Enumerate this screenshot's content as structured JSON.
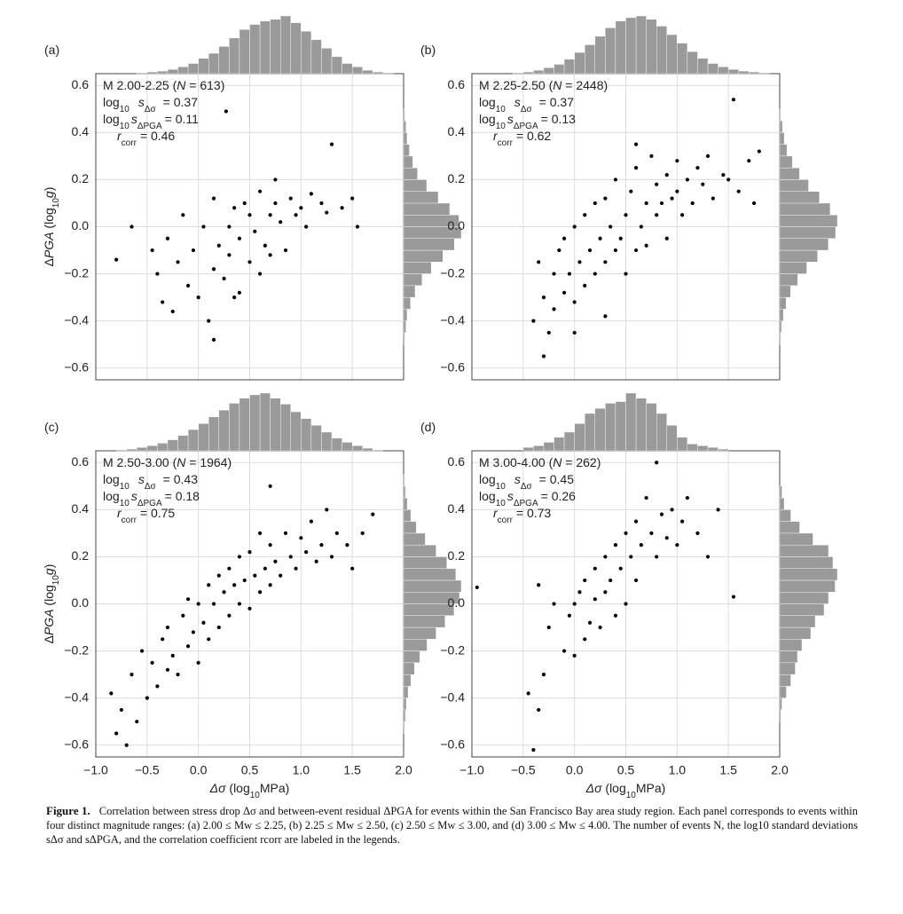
{
  "symbols": {
    "n": "N",
    "log": "log",
    "ten": "10",
    "s": "s",
    "dsig": "Δσ",
    "dpga": "ΔPGA",
    "r": "r",
    "corr": "corr"
  },
  "chart_data": [
    {
      "type": "scatter",
      "label": "(a)",
      "color": "#000000",
      "hist_color": "#9a9a9a",
      "legend": {
        "prefix": "M 2.00-2.25 (",
        "n_text": " = 613)",
        "s_dsig": "= 0.37",
        "s_dpga": "= 0.11",
        "r": "= 0.46"
      },
      "ylabel": [
        "Δ",
        "PGA",
        " (log",
        "10",
        "g",
        ")"
      ],
      "xlim": [
        -1,
        2
      ],
      "ylim": [
        -0.65,
        0.65
      ],
      "xtick_labels": false,
      "xticks": [
        -1,
        -0.5,
        0,
        0.5,
        1,
        1.5,
        2
      ],
      "yticks": [
        0.6,
        0.4,
        0.2,
        {
          "value": 0,
          "label": "0.0"
        },
        {
          "value": -0.2,
          "label": "−0.2"
        },
        {
          "value": -0.4,
          "label": "−0.4"
        },
        {
          "value": -0.6,
          "label": "−0.6"
        }
      ],
      "x": [
        -0.8,
        -0.65,
        -0.45,
        -0.4,
        -0.3,
        -0.25,
        -0.2,
        -0.15,
        -0.1,
        -0.05,
        0.0,
        0.05,
        0.1,
        0.15,
        0.15,
        0.2,
        0.25,
        0.3,
        0.3,
        0.35,
        0.4,
        0.4,
        0.45,
        0.5,
        0.5,
        0.55,
        0.6,
        0.6,
        0.65,
        0.7,
        0.7,
        0.75,
        0.8,
        0.85,
        0.9,
        0.95,
        1.0,
        1.05,
        1.1,
        1.2,
        1.25,
        1.3,
        1.4,
        1.5,
        1.55,
        0.27,
        0.15,
        0.35,
        0.75,
        -0.35
      ],
      "y": [
        -0.14,
        0.0,
        -0.1,
        -0.2,
        -0.05,
        -0.36,
        -0.15,
        0.05,
        -0.25,
        -0.1,
        -0.3,
        0.0,
        -0.4,
        -0.18,
        0.12,
        -0.08,
        -0.22,
        0.0,
        -0.12,
        0.08,
        -0.05,
        -0.28,
        0.1,
        -0.15,
        0.05,
        -0.02,
        0.15,
        -0.2,
        -0.08,
        0.05,
        -0.12,
        0.1,
        0.02,
        -0.1,
        0.12,
        0.05,
        0.08,
        0.0,
        0.14,
        0.1,
        0.06,
        0.35,
        0.08,
        0.12,
        0.0,
        0.49,
        -0.48,
        -0.3,
        0.2,
        -0.32
      ],
      "top_hist": {
        "bins": [
          -1.0,
          -0.9,
          -0.8,
          -0.7,
          -0.6,
          -0.5,
          -0.4,
          -0.3,
          -0.2,
          -0.1,
          0.0,
          0.1,
          0.2,
          0.3,
          0.4,
          0.5,
          0.6,
          0.7,
          0.8,
          0.9,
          1.0,
          1.1,
          1.2,
          1.3,
          1.4,
          1.5,
          1.6,
          1.7,
          1.8,
          1.9,
          2.0
        ],
        "counts": [
          0,
          0,
          0,
          0,
          1,
          2,
          3,
          5,
          8,
          12,
          18,
          24,
          32,
          42,
          52,
          58,
          62,
          64,
          68,
          60,
          50,
          40,
          30,
          20,
          12,
          8,
          4,
          2,
          1,
          0
        ]
      },
      "right_hist": {
        "bins": [
          -0.65,
          -0.6,
          -0.55,
          -0.5,
          -0.45,
          -0.4,
          -0.35,
          -0.3,
          -0.25,
          -0.2,
          -0.15,
          -0.1,
          -0.05,
          0.0,
          0.05,
          0.1,
          0.15,
          0.2,
          0.25,
          0.3,
          0.35,
          0.4,
          0.45,
          0.5,
          0.55,
          0.6,
          0.65
        ],
        "counts": [
          0,
          0,
          0,
          1,
          2,
          3,
          6,
          10,
          16,
          24,
          34,
          44,
          50,
          48,
          40,
          30,
          20,
          12,
          8,
          5,
          3,
          2,
          1,
          0,
          0,
          0
        ]
      }
    },
    {
      "type": "scatter",
      "label": "(b)",
      "color": "#000000",
      "hist_color": "#9a9a9a",
      "legend": {
        "prefix": "M 2.25-2.50 (",
        "n_text": " = 2448)",
        "s_dsig": "= 0.37",
        "s_dpga": "= 0.13",
        "r": "= 0.62"
      },
      "xlim": [
        -1,
        2
      ],
      "ylim": [
        -0.65,
        0.65
      ],
      "xtick_labels": false,
      "xticks": [
        -1,
        -0.5,
        0,
        0.5,
        1,
        1.5,
        2
      ],
      "yticks": [
        0.6,
        0.4,
        0.2,
        {
          "value": 0,
          "label": "0.0"
        },
        {
          "value": -0.2,
          "label": "−0.2"
        },
        {
          "value": -0.4,
          "label": "−0.4"
        },
        {
          "value": -0.6,
          "label": "−0.6"
        }
      ],
      "x": [
        -0.4,
        -0.35,
        -0.3,
        -0.3,
        -0.25,
        -0.2,
        -0.2,
        -0.15,
        -0.1,
        -0.1,
        -0.05,
        0.0,
        0.0,
        0.05,
        0.1,
        0.1,
        0.15,
        0.2,
        0.2,
        0.25,
        0.3,
        0.3,
        0.35,
        0.4,
        0.4,
        0.45,
        0.5,
        0.5,
        0.55,
        0.6,
        0.6,
        0.65,
        0.7,
        0.7,
        0.75,
        0.8,
        0.8,
        0.85,
        0.9,
        0.9,
        0.95,
        1.0,
        1.0,
        1.05,
        1.1,
        1.15,
        1.2,
        1.25,
        1.3,
        1.35,
        1.45,
        1.5,
        1.6,
        1.7,
        1.75,
        1.8,
        1.55,
        0.0,
        0.3,
        0.6
      ],
      "y": [
        -0.4,
        -0.15,
        -0.55,
        -0.3,
        -0.45,
        -0.2,
        -0.35,
        -0.1,
        -0.28,
        -0.05,
        -0.2,
        -0.32,
        0.0,
        -0.15,
        -0.25,
        0.05,
        -0.1,
        -0.2,
        0.1,
        -0.05,
        -0.15,
        0.12,
        0.0,
        -0.1,
        0.2,
        -0.05,
        0.05,
        -0.2,
        0.15,
        -0.1,
        0.25,
        0.0,
        0.1,
        -0.08,
        0.3,
        0.05,
        0.18,
        0.1,
        -0.05,
        0.22,
        0.12,
        0.15,
        0.28,
        0.05,
        0.2,
        0.1,
        0.25,
        0.18,
        0.3,
        0.12,
        0.22,
        0.2,
        0.15,
        0.28,
        0.1,
        0.32,
        0.54,
        -0.45,
        -0.38,
        0.35
      ],
      "top_hist": {
        "bins": [
          -1.0,
          -0.9,
          -0.8,
          -0.7,
          -0.6,
          -0.5,
          -0.4,
          -0.3,
          -0.2,
          -0.1,
          0.0,
          0.1,
          0.2,
          0.3,
          0.4,
          0.5,
          0.6,
          0.7,
          0.8,
          0.9,
          1.0,
          1.1,
          1.2,
          1.3,
          1.4,
          1.5,
          1.6,
          1.7,
          1.8,
          1.9,
          2.0
        ],
        "counts": [
          0,
          0,
          0,
          0,
          1,
          2,
          4,
          7,
          11,
          17,
          25,
          34,
          44,
          54,
          62,
          66,
          68,
          64,
          56,
          46,
          36,
          26,
          18,
          12,
          8,
          5,
          3,
          2,
          1,
          0
        ]
      },
      "right_hist": {
        "bins": [
          -0.65,
          -0.6,
          -0.55,
          -0.5,
          -0.45,
          -0.4,
          -0.35,
          -0.3,
          -0.25,
          -0.2,
          -0.15,
          -0.1,
          -0.05,
          0.0,
          0.05,
          0.1,
          0.15,
          0.2,
          0.25,
          0.3,
          0.35,
          0.4,
          0.45,
          0.5,
          0.55,
          0.6,
          0.65
        ],
        "counts": [
          0,
          0,
          0,
          1,
          2,
          4,
          7,
          12,
          20,
          30,
          42,
          54,
          62,
          64,
          56,
          44,
          32,
          22,
          14,
          8,
          5,
          3,
          1,
          0,
          0,
          0
        ]
      }
    },
    {
      "type": "scatter",
      "label": "(c)",
      "color": "#000000",
      "hist_color": "#9a9a9a",
      "legend": {
        "prefix": "M 2.50-3.00 (",
        "n_text": " = 1964)",
        "s_dsig": "= 0.43",
        "s_dpga": "= 0.18",
        "r": "= 0.75"
      },
      "ylabel": [
        "Δ",
        "PGA",
        " (log",
        "10",
        "g",
        ")"
      ],
      "xlabel": [
        "Δσ",
        " (log",
        "10",
        "MPa)"
      ],
      "xlim": [
        -1,
        2
      ],
      "ylim": [
        -0.65,
        0.65
      ],
      "xtick_labels": true,
      "xticks": [
        {
          "value": -1,
          "label": "−1.0"
        },
        {
          "value": -0.5,
          "label": "−0.5"
        },
        {
          "value": 0,
          "label": "0.0"
        },
        0.5,
        {
          "value": 1,
          "label": "1.0"
        },
        1.5,
        {
          "value": 2,
          "label": "2.0"
        }
      ],
      "yticks": [
        0.6,
        0.4,
        0.2,
        {
          "value": 0,
          "label": "0.0"
        },
        {
          "value": -0.2,
          "label": "−0.2"
        },
        {
          "value": -0.4,
          "label": "−0.4"
        },
        {
          "value": -0.6,
          "label": "−0.6"
        }
      ],
      "x": [
        -0.85,
        -0.8,
        -0.75,
        -0.7,
        -0.65,
        -0.6,
        -0.55,
        -0.5,
        -0.45,
        -0.4,
        -0.35,
        -0.3,
        -0.3,
        -0.25,
        -0.2,
        -0.15,
        -0.1,
        -0.1,
        -0.05,
        0.0,
        0.0,
        0.05,
        0.1,
        0.1,
        0.15,
        0.2,
        0.2,
        0.25,
        0.3,
        0.3,
        0.35,
        0.4,
        0.4,
        0.45,
        0.5,
        0.5,
        0.55,
        0.6,
        0.6,
        0.65,
        0.7,
        0.7,
        0.75,
        0.8,
        0.85,
        0.9,
        0.95,
        1.0,
        1.05,
        1.1,
        1.15,
        1.2,
        1.25,
        1.3,
        1.35,
        1.45,
        1.5,
        1.6,
        1.7,
        0.7
      ],
      "y": [
        -0.38,
        -0.55,
        -0.45,
        -0.6,
        -0.3,
        -0.5,
        -0.2,
        -0.4,
        -0.25,
        -0.35,
        -0.15,
        -0.28,
        -0.1,
        -0.22,
        -0.3,
        -0.05,
        -0.18,
        0.02,
        -0.12,
        -0.25,
        0.0,
        -0.08,
        -0.15,
        0.08,
        0.0,
        -0.1,
        0.12,
        0.05,
        -0.05,
        0.15,
        0.08,
        0.0,
        0.2,
        0.1,
        -0.02,
        0.22,
        0.12,
        0.05,
        0.3,
        0.15,
        0.08,
        0.25,
        0.18,
        0.12,
        0.3,
        0.2,
        0.15,
        0.28,
        0.22,
        0.35,
        0.18,
        0.25,
        0.4,
        0.2,
        0.3,
        0.25,
        0.15,
        0.3,
        0.38,
        0.5
      ],
      "top_hist": {
        "bins": [
          -1.0,
          -0.9,
          -0.8,
          -0.7,
          -0.6,
          -0.5,
          -0.4,
          -0.3,
          -0.2,
          -0.1,
          0.0,
          0.1,
          0.2,
          0.3,
          0.4,
          0.5,
          0.6,
          0.7,
          0.8,
          0.9,
          1.0,
          1.1,
          1.2,
          1.3,
          1.4,
          1.5,
          1.6,
          1.7,
          1.8,
          1.9,
          2.0
        ],
        "counts": [
          0,
          0,
          1,
          2,
          4,
          6,
          9,
          13,
          18,
          25,
          32,
          40,
          48,
          56,
          62,
          66,
          68,
          62,
          55,
          46,
          38,
          30,
          22,
          15,
          10,
          6,
          3,
          1,
          0,
          0
        ]
      },
      "right_hist": {
        "bins": [
          -0.65,
          -0.6,
          -0.55,
          -0.5,
          -0.45,
          -0.4,
          -0.35,
          -0.3,
          -0.25,
          -0.2,
          -0.15,
          -0.1,
          -0.05,
          0.0,
          0.05,
          0.1,
          0.15,
          0.2,
          0.25,
          0.3,
          0.35,
          0.4,
          0.45,
          0.5,
          0.55,
          0.6,
          0.65
        ],
        "counts": [
          0,
          0,
          1,
          2,
          3,
          5,
          8,
          12,
          18,
          26,
          36,
          46,
          56,
          62,
          64,
          58,
          48,
          36,
          24,
          14,
          8,
          4,
          2,
          1,
          0,
          0
        ]
      }
    },
    {
      "type": "scatter",
      "label": "(d)",
      "color": "#000000",
      "hist_color": "#9a9a9a",
      "legend": {
        "prefix": "M 3.00-4.00 (",
        "n_text": " = 262)",
        "s_dsig": "= 0.45",
        "s_dpga": "= 0.26",
        "r": "= 0.73"
      },
      "xlabel": [
        "Δσ",
        " (log",
        "10",
        "MPa)"
      ],
      "xlim": [
        -1,
        2
      ],
      "ylim": [
        -0.65,
        0.65
      ],
      "xtick_labels": true,
      "xticks": [
        {
          "value": -1,
          "label": "−1.0"
        },
        {
          "value": -0.5,
          "label": "−0.5"
        },
        {
          "value": 0,
          "label": "0.0"
        },
        0.5,
        {
          "value": 1,
          "label": "1.0"
        },
        1.5,
        {
          "value": 2,
          "label": "2.0"
        }
      ],
      "yticks": [
        0.6,
        0.4,
        0.2,
        {
          "value": 0,
          "label": "0.0"
        },
        {
          "value": -0.2,
          "label": "−0.2"
        },
        {
          "value": -0.4,
          "label": "−0.4"
        },
        {
          "value": -0.6,
          "label": "−0.6"
        }
      ],
      "x": [
        -0.95,
        -0.45,
        -0.4,
        -0.35,
        -0.35,
        -0.3,
        -0.25,
        -0.2,
        -0.1,
        -0.05,
        0.0,
        0.0,
        0.05,
        0.1,
        0.1,
        0.15,
        0.2,
        0.2,
        0.25,
        0.3,
        0.3,
        0.35,
        0.4,
        0.4,
        0.45,
        0.5,
        0.5,
        0.55,
        0.6,
        0.6,
        0.65,
        0.7,
        0.75,
        0.8,
        0.8,
        0.85,
        0.9,
        0.95,
        1.0,
        1.05,
        1.1,
        1.2,
        1.3,
        1.4,
        1.55
      ],
      "y": [
        0.07,
        -0.38,
        -0.62,
        -0.45,
        0.08,
        -0.3,
        -0.1,
        0.0,
        -0.2,
        -0.05,
        -0.22,
        0.0,
        0.05,
        -0.15,
        0.1,
        -0.08,
        0.15,
        0.02,
        -0.1,
        0.2,
        0.05,
        0.1,
        -0.05,
        0.25,
        0.15,
        0.3,
        0.0,
        0.2,
        0.35,
        0.1,
        0.25,
        0.45,
        0.3,
        0.2,
        0.6,
        0.38,
        0.28,
        0.4,
        0.25,
        0.35,
        0.45,
        0.3,
        0.2,
        0.4,
        0.03
      ],
      "top_hist": {
        "bins": [
          -1.0,
          -0.9,
          -0.8,
          -0.7,
          -0.6,
          -0.5,
          -0.4,
          -0.3,
          -0.2,
          -0.1,
          0.0,
          0.1,
          0.2,
          0.3,
          0.4,
          0.5,
          0.6,
          0.7,
          0.8,
          0.9,
          1.0,
          1.1,
          1.2,
          1.3,
          1.4,
          1.5,
          1.6,
          1.7,
          1.8,
          1.9,
          2.0
        ],
        "counts": [
          0,
          0,
          0,
          0,
          0,
          4,
          6,
          10,
          16,
          22,
          32,
          44,
          50,
          56,
          58,
          68,
          62,
          56,
          44,
          30,
          16,
          8,
          6,
          4,
          2,
          0,
          0,
          0,
          0,
          0
        ]
      },
      "right_hist": {
        "bins": [
          -0.65,
          -0.6,
          -0.55,
          -0.5,
          -0.45,
          -0.4,
          -0.35,
          -0.3,
          -0.25,
          -0.2,
          -0.15,
          -0.1,
          -0.05,
          0.0,
          0.05,
          0.1,
          0.15,
          0.2,
          0.25,
          0.3,
          0.35,
          0.4,
          0.45,
          0.5,
          0.55,
          0.6,
          0.65
        ],
        "counts": [
          0,
          0,
          0,
          1,
          2,
          6,
          10,
          14,
          16,
          20,
          28,
          32,
          40,
          44,
          50,
          52,
          48,
          44,
          30,
          18,
          10,
          4,
          2,
          0,
          0,
          0
        ]
      }
    }
  ],
  "caption": {
    "label": "Figure 1.",
    "text": "Correlation between stress drop Δσ and between-event residual ΔPGA for events within the San Francisco Bay area study region. Each panel corresponds to events within four distinct magnitude ranges: (a) 2.00 ≤ Mw ≤ 2.25, (b) 2.25 ≤ Mw ≤ 2.50, (c) 2.50 ≤ Mw ≤ 3.00, and (d) 3.00 ≤ Mw ≤ 4.00. The number of events N, the log10 standard deviations sΔσ and sΔPGA, and the correlation coefficient rcorr are labeled in the legends."
  }
}
